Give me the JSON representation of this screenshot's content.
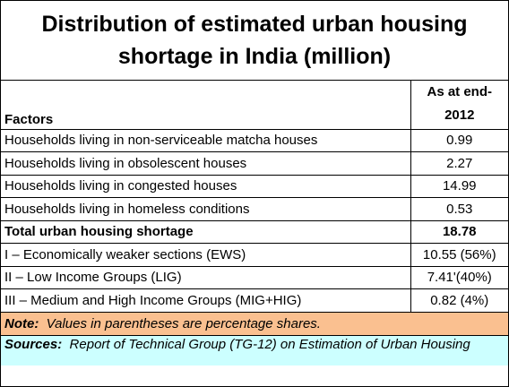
{
  "title": "Distribution of estimated urban housing shortage in India (million)",
  "table": {
    "header": [
      "Factors",
      "As at end-2012"
    ],
    "rows": [
      [
        "Households living in non-serviceable matcha houses",
        "0.99"
      ],
      [
        "Households living in obsolescent houses",
        "2.27"
      ],
      [
        "Households living in congested houses",
        "14.99"
      ],
      [
        "Households living in homeless conditions",
        "0.53"
      ],
      [
        "Total urban housing shortage",
        "18.78"
      ],
      [
        "I – Economically weaker sections (EWS)",
        "10.55 (56%)"
      ],
      [
        "II – Low Income Groups (LIG)",
        "7.41'(40%)"
      ],
      [
        "III – Medium and High Income Groups (MIG+HIG)",
        "0.82 (4%)"
      ]
    ]
  },
  "note": {
    "label": "Note:",
    "text": "Values in parentheses are percentage shares."
  },
  "sources": {
    "label": "Sources:",
    "text": "Report of Technical Group (TG-12) on Estimation of Urban Housing"
  }
}
